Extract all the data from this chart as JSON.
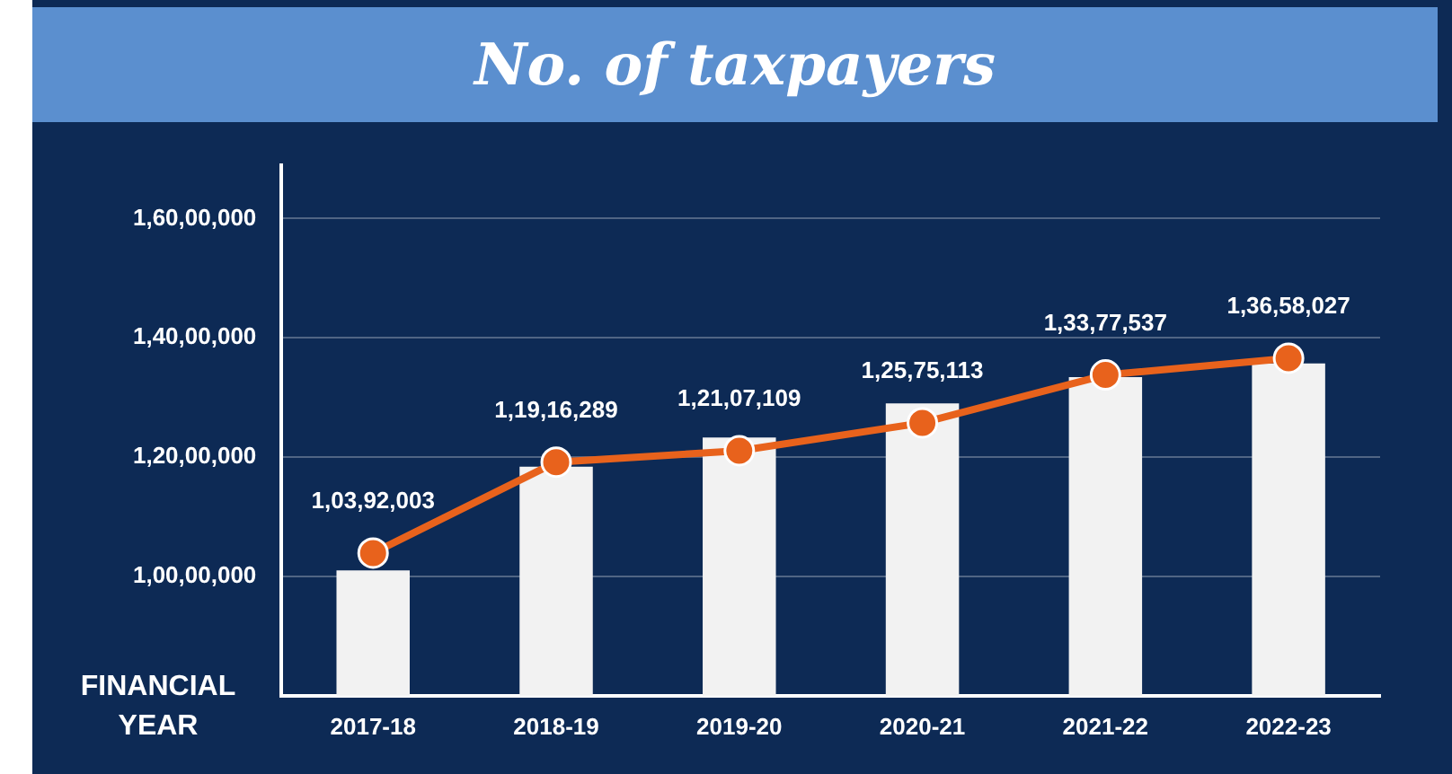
{
  "chart_data": {
    "type": "bar",
    "title": "No. of taxpayers",
    "xlabel": "FINANCIAL YEAR",
    "categories": [
      "2017-18",
      "2018-19",
      "2019-20",
      "2020-21",
      "2021-22",
      "2022-23"
    ],
    "series": [
      {
        "color": "#f2f2f2",
        "values": [
          10100000,
          11840000,
          12330000,
          12900000,
          13340000,
          13570000
        ]
      },
      {
        "type": "line",
        "color": "#e8621c",
        "values": [
          10392003,
          11916289,
          12107109,
          12575113,
          13377537,
          13658027
        ],
        "value_labels": [
          "1,03,92,003",
          "1,19,16,289",
          "1,21,07,109",
          "1,25,75,113",
          "1,33,77,537",
          "1,36,58,027"
        ]
      }
    ],
    "ylim": [
      8000000,
      16900000
    ],
    "yticks": [
      {
        "value": 10000000,
        "label": "1,00,00,000"
      },
      {
        "value": 12000000,
        "label": "1,20,00,000"
      },
      {
        "value": 14000000,
        "label": "1,40,00,000"
      },
      {
        "value": 16000000,
        "label": "1,60,00,000"
      }
    ],
    "grid": "y",
    "legend": false,
    "marker": "circle",
    "line_style": "solid"
  }
}
